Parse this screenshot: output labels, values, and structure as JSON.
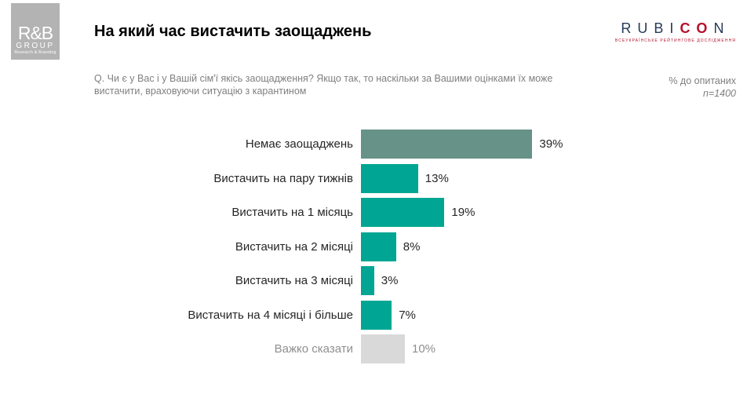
{
  "header": {
    "rb_logo": {
      "line1": "R&B",
      "line2": "GROUP",
      "line3": "Research & Branding"
    },
    "title": "На який час вистачить заощаджень",
    "question": "Q. Чи є у Вас і у Вашій сім'ї якісь заощадження? Якщо так, то наскільки за Вашими оцінками їх може вистачити, враховуючи ситуацію з карантином",
    "rubicon": {
      "seg1": "RUBI",
      "seg2": "CO",
      "seg3": "N",
      "tagline": "ВСЕУКРАЇНСЬКЕ РЕЙТИНГОВЕ ДОСЛІДЖЕННЯ"
    },
    "meta": {
      "percent_note": "% до опитаних",
      "sample": "n=1400"
    }
  },
  "chart_data": {
    "type": "bar",
    "orientation": "horizontal",
    "title": "На який час вистачить заощаджень",
    "unit": "% до опитаних",
    "sample_size": 1400,
    "xlim": [
      0,
      40
    ],
    "grid": false,
    "legend": false,
    "categories": [
      "Немає заощаджень",
      "Вистачить на пару тижнів",
      "Вистачить на 1 місяць",
      "Вистачить на 2 місяці",
      "Вистачить на 3 місяці",
      "Вистачить на 4 місяці і більше",
      "Важко сказати"
    ],
    "values": [
      39,
      13,
      19,
      8,
      3,
      7,
      10
    ],
    "rows": [
      {
        "label": "Немає заощаджень",
        "value": 39,
        "display": "39%",
        "color": "sage",
        "muted": false
      },
      {
        "label": "Вистачить на пару тижнів",
        "value": 13,
        "display": "13%",
        "color": "teal",
        "muted": false
      },
      {
        "label": "Вистачить на 1 місяць",
        "value": 19,
        "display": "19%",
        "color": "teal",
        "muted": false
      },
      {
        "label": "Вистачить на 2 місяці",
        "value": 8,
        "display": "8%",
        "color": "teal",
        "muted": false
      },
      {
        "label": "Вистачить на 3 місяці",
        "value": 3,
        "display": "3%",
        "color": "teal",
        "muted": false
      },
      {
        "label": "Вистачить на 4 місяці і більше",
        "value": 7,
        "display": "7%",
        "color": "teal",
        "muted": false
      },
      {
        "label": "Важко сказати",
        "value": 10,
        "display": "10%",
        "color": "neutral",
        "muted": true
      }
    ],
    "colors": {
      "sage": "#679287",
      "teal": "#00a693",
      "neutral": "#d9d9d9",
      "label_text": "#262626",
      "muted_text": "#8f8f8f",
      "subtitle_text": "#808080",
      "navy": "#273a58",
      "crimson": "#b5122d",
      "logo_gray": "#b3b3b3"
    }
  }
}
